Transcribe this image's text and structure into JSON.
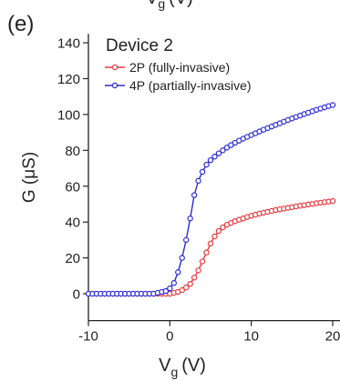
{
  "chart_data": {
    "type": "line",
    "panel_label": "(e)",
    "legend_title": "Device 2",
    "x_label": {
      "main": "V",
      "sub": "g",
      "unit": "(V)"
    },
    "y_label": "G (μS)",
    "xlim": [
      -10,
      20
    ],
    "xticks": [
      -10,
      0,
      10,
      20
    ],
    "ylim": [
      -15,
      145
    ],
    "yticks": [
      0,
      20,
      40,
      60,
      80,
      100,
      120,
      140
    ],
    "x": [
      -10,
      -9.5,
      -9,
      -8.5,
      -8,
      -7.5,
      -7,
      -6.5,
      -6,
      -5.5,
      -5,
      -4.5,
      -4,
      -3.5,
      -3,
      -2.5,
      -2,
      -1.5,
      -1,
      -0.5,
      0,
      0.5,
      1,
      1.5,
      2,
      2.5,
      3,
      3.5,
      4,
      4.5,
      5,
      5.5,
      6,
      6.5,
      7,
      7.5,
      8,
      8.5,
      9,
      9.5,
      10,
      10.5,
      11,
      11.5,
      12,
      12.5,
      13,
      13.5,
      14,
      14.5,
      15,
      15.5,
      16,
      16.5,
      17,
      17.5,
      18,
      18.5,
      19,
      19.5,
      20
    ],
    "legend": "upper left",
    "series": [
      {
        "name": "2P (fully-invasive)",
        "color": "#e8383d",
        "values": [
          0,
          0,
          0,
          0,
          0,
          0,
          0,
          0,
          0,
          0,
          0,
          0,
          0,
          0,
          0,
          0,
          0,
          0,
          0,
          0,
          0,
          0.5,
          1,
          2,
          3.5,
          5.5,
          9,
          13,
          18,
          23,
          28,
          32,
          35,
          37,
          38.5,
          39.5,
          40.5,
          41.3,
          42,
          42.8,
          43.5,
          44.1,
          44.7,
          45.2,
          45.7,
          46.2,
          46.7,
          47.1,
          47.5,
          47.9,
          48.3,
          48.7,
          49.1,
          49.4,
          49.8,
          50.1,
          50.5,
          50.8,
          51.1,
          51.4,
          51.7
        ]
      },
      {
        "name": "4P (partially-invasive)",
        "color": "#2b2bd6",
        "values": [
          0,
          0,
          0,
          0,
          0,
          0,
          0,
          0,
          0,
          0,
          0,
          0,
          0,
          0,
          0,
          0,
          0,
          0.5,
          1,
          1.5,
          3,
          6,
          12,
          20,
          30,
          42,
          55,
          63,
          68,
          72,
          74.5,
          76.5,
          78.3,
          80,
          81.5,
          82.9,
          84.2,
          85.4,
          86.5,
          87.5,
          88.5,
          89.5,
          90.5,
          91.5,
          92.4,
          93.3,
          94.2,
          95.1,
          96,
          96.9,
          97.8,
          98.6,
          99.4,
          100.2,
          101,
          101.8,
          102.6,
          103.3,
          104,
          104.7,
          105.3
        ]
      }
    ]
  }
}
